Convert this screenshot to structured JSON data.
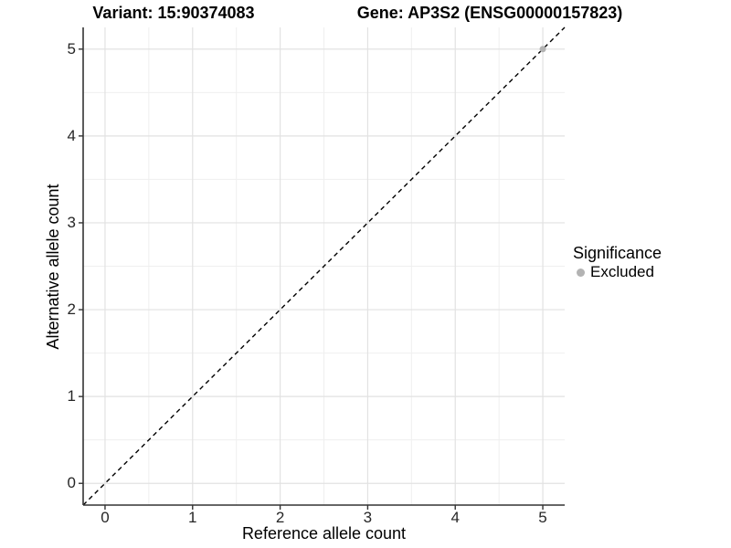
{
  "chart_data": {
    "type": "scatter",
    "title_left": "Variant: 15:90374083",
    "title_right": "Gene: AP3S2 (ENSG00000157823)",
    "xlabel": "Reference allele count",
    "ylabel": "Alternative allele count",
    "xlim": [
      -0.25,
      5.25
    ],
    "ylim": [
      -0.25,
      5.25
    ],
    "xticks": [
      0,
      1,
      2,
      3,
      4,
      5
    ],
    "yticks": [
      0,
      1,
      2,
      3,
      4,
      5
    ],
    "xticks_minor": [
      0.5,
      1.5,
      2.5,
      3.5,
      4.5
    ],
    "yticks_minor": [
      0.5,
      1.5,
      2.5,
      3.5,
      4.5
    ],
    "grid": "major and minor gridlines on white panel",
    "reference_line": {
      "kind": "identity y=x",
      "style": "dashed",
      "color": "#000000",
      "from": [
        -0.25,
        -0.25
      ],
      "to": [
        5.25,
        5.25
      ]
    },
    "series": [
      {
        "name": "Excluded",
        "marker": "circle",
        "color": "#b3b3b3",
        "points": [
          [
            5,
            5
          ]
        ]
      }
    ],
    "legend": {
      "title": "Significance",
      "position": "right",
      "items": [
        {
          "label": "Excluded",
          "marker": "circle",
          "color": "#b3b3b3"
        }
      ]
    },
    "colors": {
      "grid_major": "#e2e2e2",
      "grid_minor": "#efefef",
      "axis": "#333333",
      "tick_text": "#262626",
      "title_text": "#000000"
    }
  }
}
